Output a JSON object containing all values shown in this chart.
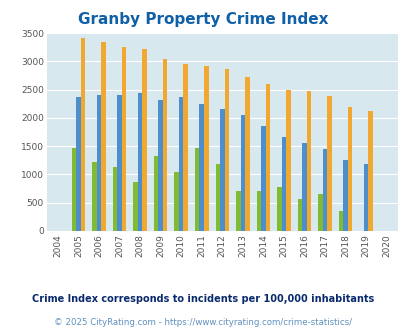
{
  "title": "Granby Property Crime Index",
  "years": [
    2004,
    2005,
    2006,
    2007,
    2008,
    2009,
    2010,
    2011,
    2012,
    2013,
    2014,
    2015,
    2016,
    2017,
    2018,
    2019,
    2020
  ],
  "granby": [
    0,
    1470,
    1220,
    1130,
    870,
    1330,
    1050,
    1470,
    1190,
    700,
    700,
    780,
    560,
    650,
    360,
    0,
    0
  ],
  "massachusetts": [
    0,
    2370,
    2400,
    2400,
    2440,
    2310,
    2360,
    2250,
    2155,
    2050,
    1850,
    1670,
    1560,
    1450,
    1260,
    1180,
    0
  ],
  "national": [
    0,
    3420,
    3340,
    3260,
    3210,
    3040,
    2960,
    2920,
    2860,
    2720,
    2590,
    2500,
    2470,
    2380,
    2200,
    2120,
    0
  ],
  "color_granby": "#80bb33",
  "color_mass": "#4d8fcc",
  "color_national": "#f0a830",
  "ylabel_max": 3500,
  "yticks": [
    0,
    500,
    1000,
    1500,
    2000,
    2500,
    3000,
    3500
  ],
  "subtitle": "Crime Index corresponds to incidents per 100,000 inhabitants",
  "footer": "© 2025 CityRating.com - https://www.cityrating.com/crime-statistics/",
  "bg_color": "#d8e8ef",
  "title_color": "#1060a8",
  "subtitle_color": "#0a2a6e",
  "footer_color": "#6090c0",
  "bar_width": 0.22
}
